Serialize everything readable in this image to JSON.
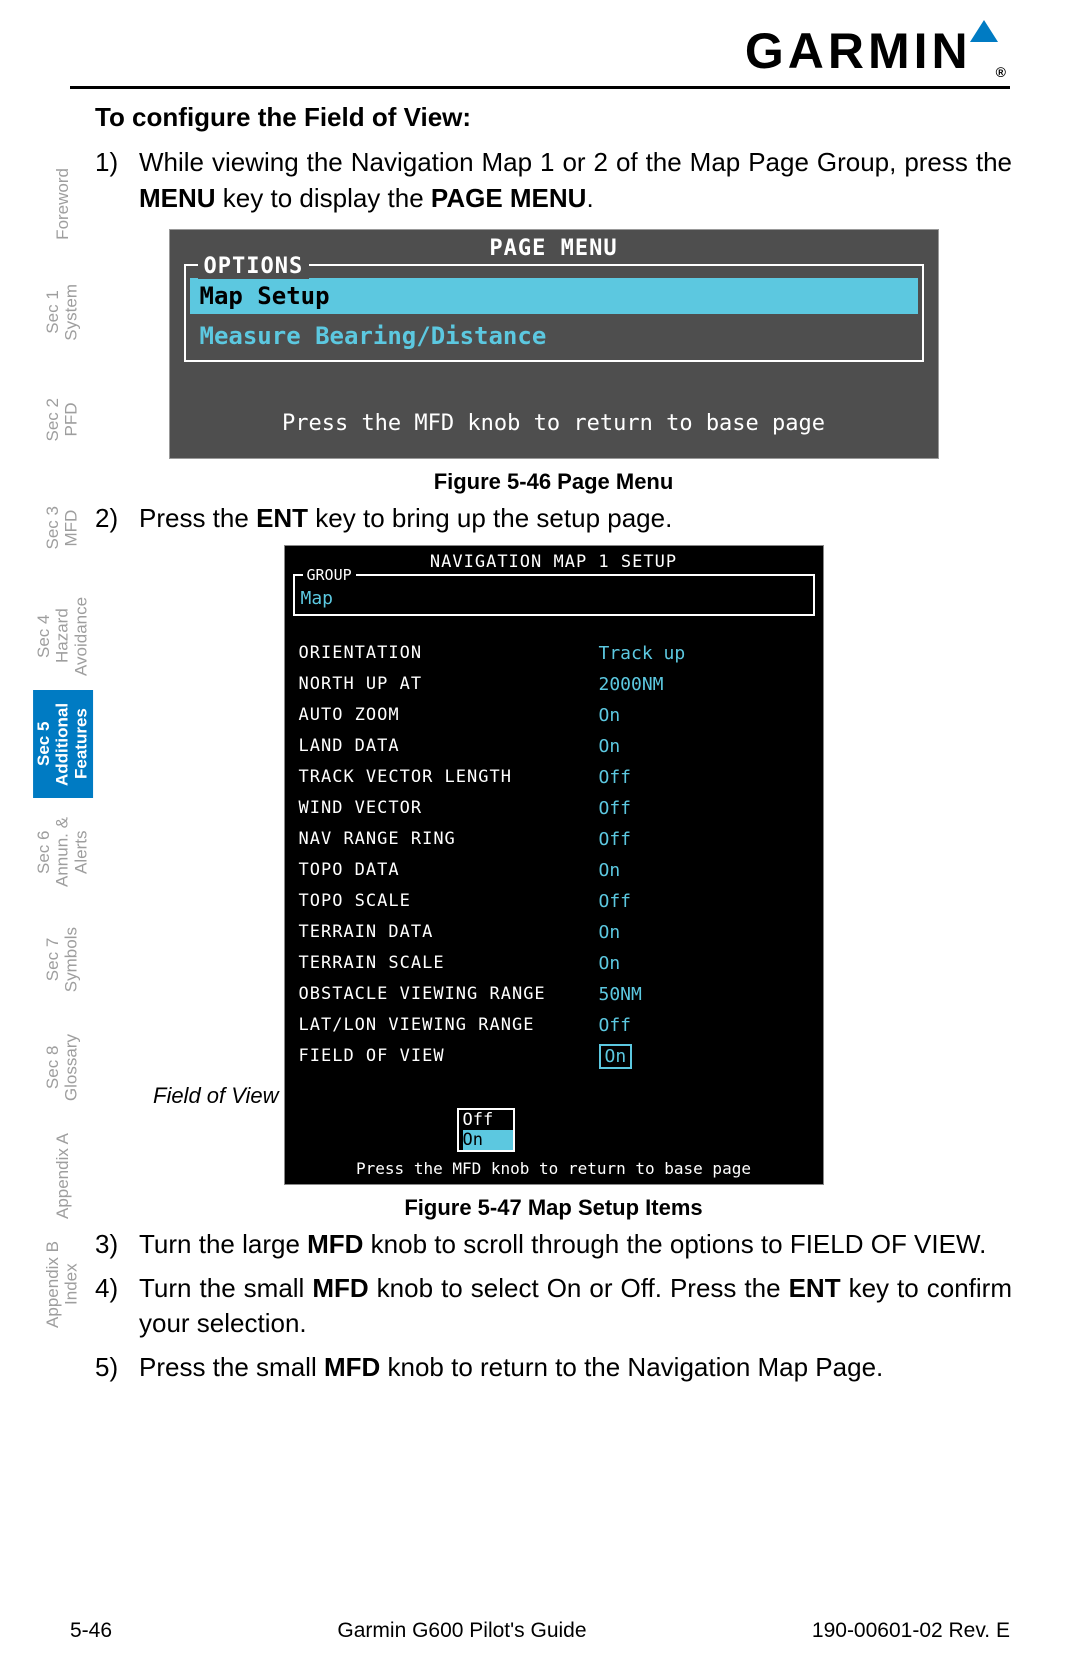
{
  "header": {
    "logo_text": "GARMIN",
    "registered": "®"
  },
  "heading": "To configure the Field of View:",
  "steps": [
    {
      "num": "1)",
      "prefix": "While viewing the Navigation Map 1 or 2 of the Map Page Group, press the ",
      "bold1": "MENU",
      "mid": " key to display the ",
      "bold2": "PAGE MENU",
      "suffix": "."
    },
    {
      "num": "2)",
      "prefix": "Press the ",
      "bold1": "ENT",
      "mid": " key to bring up the setup page.",
      "bold2": "",
      "suffix": ""
    },
    {
      "num": "3)",
      "prefix": "Turn the large ",
      "bold1": "MFD",
      "mid": " knob to scroll through the options to FIELD OF VIEW.",
      "bold2": "",
      "suffix": ""
    },
    {
      "num": "4)",
      "prefix": "Turn the small ",
      "bold1": "MFD",
      "mid": " knob to select On or Off. Press the ",
      "bold2": "ENT",
      "suffix": " key to confirm your selection."
    },
    {
      "num": "5)",
      "prefix": "Press the small ",
      "bold1": "MFD",
      "mid": " knob to return to the Navigation Map Page.",
      "bold2": "",
      "suffix": ""
    }
  ],
  "figure1": {
    "caption": "Figure 5-46  Page Menu",
    "title": "PAGE MENU",
    "options_label": "OPTIONS",
    "opt_selected": "Map Setup",
    "opt_unselected": "Measure Bearing/Distance",
    "hint": "Press the MFD knob to return to base page",
    "colors": {
      "bg": "#4e4e4e",
      "sel_bg": "#5cc8e0",
      "text": "#ffffff"
    }
  },
  "figure2": {
    "caption": "Figure 5-47  Map Setup Items",
    "title": "NAVIGATION MAP 1 SETUP",
    "group_label": "GROUP",
    "group_value": "Map",
    "rows": [
      {
        "label": "ORIENTATION",
        "value": "Track up"
      },
      {
        "label": "NORTH UP AT",
        "value": "2000NM"
      },
      {
        "label": "AUTO ZOOM",
        "value": "On"
      },
      {
        "label": "LAND DATA",
        "value": "On"
      },
      {
        "label": "TRACK VECTOR LENGTH",
        "value": "Off"
      },
      {
        "label": "WIND VECTOR",
        "value": "Off"
      },
      {
        "label": "NAV RANGE RING",
        "value": "Off"
      },
      {
        "label": "TOPO DATA",
        "value": "On"
      },
      {
        "label": "TOPO SCALE",
        "value": "Off"
      },
      {
        "label": "TERRAIN DATA",
        "value": "On"
      },
      {
        "label": "TERRAIN SCALE",
        "value": "On"
      },
      {
        "label": "OBSTACLE VIEWING RANGE",
        "value": "50NM"
      },
      {
        "label": "LAT/LON VIEWING RANGE",
        "value": "Off"
      },
      {
        "label": "FIELD OF VIEW",
        "value": "On",
        "selected": true
      }
    ],
    "popup": {
      "opt1": "Off",
      "opt2": "On"
    },
    "hint": "Press the MFD knob to return to base page",
    "callout": "Field of View",
    "colors": {
      "bg": "#000000",
      "value": "#5cc8e0",
      "text": "#ffffff"
    }
  },
  "sidebar": [
    {
      "l1": "",
      "l2": "Foreword"
    },
    {
      "l1": "Sec 1",
      "l2": "System"
    },
    {
      "l1": "Sec 2",
      "l2": "PFD"
    },
    {
      "l1": "Sec 3",
      "l2": "MFD"
    },
    {
      "l1": "Sec 4",
      "l2": "Hazard Avoidance"
    },
    {
      "l1": "Sec 5",
      "l2": "Additional Features",
      "active": true
    },
    {
      "l1": "Sec 6",
      "l2": "Annun. & Alerts"
    },
    {
      "l1": "Sec 7",
      "l2": "Symbols"
    },
    {
      "l1": "Sec 8",
      "l2": "Glossary"
    },
    {
      "l1": "",
      "l2": "Appendix A"
    },
    {
      "l1": "Appendix B",
      "l2": "Index"
    }
  ],
  "footer": {
    "left": "5-46",
    "center": "Garmin G600 Pilot's Guide",
    "right": "190-00601-02  Rev. E"
  }
}
